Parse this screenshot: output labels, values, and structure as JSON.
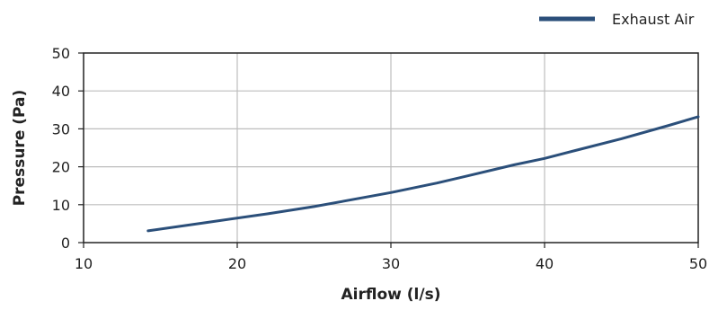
{
  "chart_data": {
    "type": "line",
    "xlabel": "Airflow (l/s)",
    "ylabel": "Pressure (Pa)",
    "xlim": [
      10,
      50
    ],
    "ylim": [
      0,
      50
    ],
    "x_ticks": [
      10,
      20,
      30,
      40,
      50
    ],
    "y_ticks": [
      0,
      10,
      20,
      30,
      40,
      50
    ],
    "x_tick_labels": [
      "10",
      "20",
      "30",
      "40",
      "50"
    ],
    "y_tick_labels": [
      "0",
      "10",
      "20",
      "30",
      "40",
      "50"
    ],
    "grid": true,
    "legend_position": "top-right",
    "series": [
      {
        "name": "Exhaust Air",
        "color": "#2b4f7a",
        "points": [
          [
            14.2,
            3.1
          ],
          [
            18,
            5.3
          ],
          [
            22,
            7.6
          ],
          [
            25,
            9.5
          ],
          [
            30,
            13.2
          ],
          [
            33,
            15.7
          ],
          [
            35,
            17.6
          ],
          [
            38,
            20.5
          ],
          [
            40,
            22.2
          ],
          [
            42,
            24.3
          ],
          [
            45,
            27.4
          ],
          [
            48,
            30.8
          ],
          [
            50,
            33.2
          ]
        ]
      }
    ]
  }
}
